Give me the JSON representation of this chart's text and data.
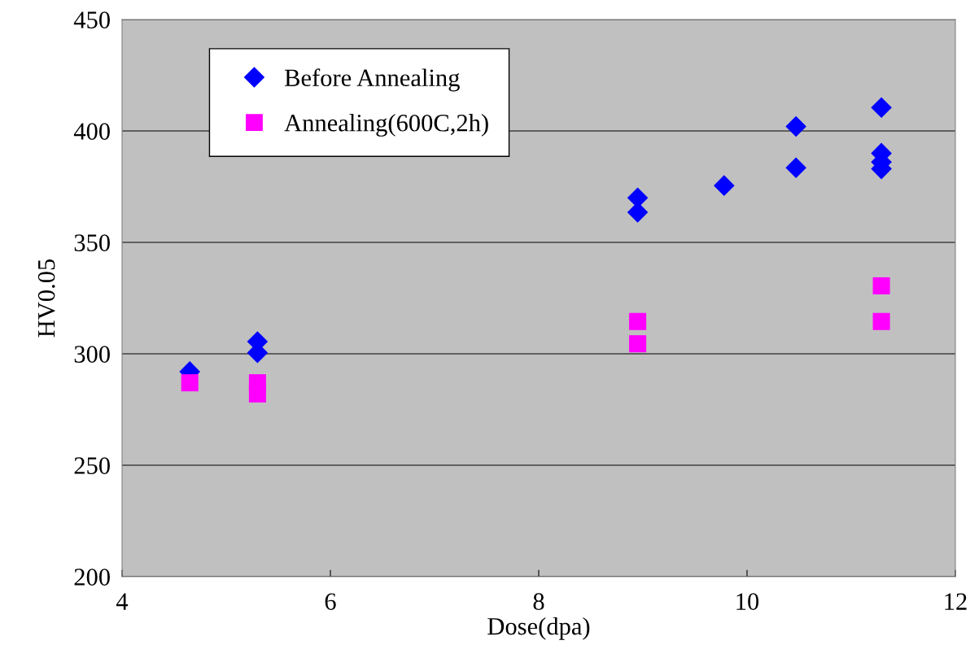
{
  "chart_data": {
    "type": "scatter",
    "xlabel": "Dose(dpa)",
    "ylabel": "HV0.05",
    "xlim": [
      4,
      12
    ],
    "xticks": [
      4,
      6,
      8,
      10,
      12
    ],
    "ylim": [
      200,
      450
    ],
    "yticks": [
      200,
      250,
      300,
      350,
      400,
      450
    ],
    "grid": "y",
    "legend": "top left",
    "series": [
      {
        "name": "Before Annealing",
        "color": "#0000ff",
        "marker": "diamond",
        "x": [
          4.65,
          5.3,
          5.3,
          8.95,
          8.95,
          9.78,
          10.47,
          10.47,
          11.29,
          11.29,
          11.29,
          11.29
        ],
        "values": [
          292,
          305.5,
          300.5,
          370,
          363.5,
          375.5,
          402,
          383.5,
          410.5,
          390,
          386,
          383
        ]
      },
      {
        "name": "Annealing(600C,2h)",
        "color": "#ff00ff",
        "marker": "square",
        "x": [
          4.65,
          5.3,
          5.3,
          8.95,
          8.95,
          11.29,
          11.29
        ],
        "values": [
          287,
          287,
          282,
          314.5,
          304.5,
          330.5,
          314.5
        ]
      }
    ]
  }
}
